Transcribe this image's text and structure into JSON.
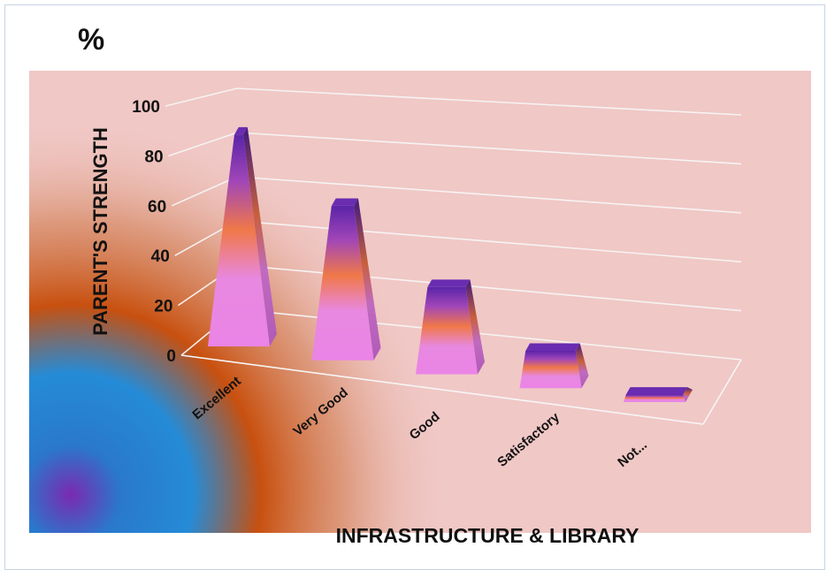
{
  "chart_data": {
    "type": "bar",
    "title": "%",
    "xlabel": "INFRASTRUCTURE & LIBRARY",
    "ylabel": "PARENT'S STRENGTH",
    "categories": [
      "Excellent",
      "Very Good",
      "Good",
      "Satisfactory",
      "Not..."
    ],
    "values": [
      85,
      62,
      35,
      15,
      3
    ],
    "ylim": [
      0,
      100
    ],
    "yticks": [
      "0",
      "20",
      "40",
      "60",
      "80",
      "100"
    ],
    "grid": true,
    "style": "3d-pyramid"
  },
  "colors": {
    "plot_background": "#f0c8c6",
    "glow_orange": "#c8500f",
    "glow_blue": "#1a7fd0",
    "glow_purple": "#7a2ab0",
    "bar_top": "#6a2cb0",
    "bar_mid": "#f07848",
    "bar_bottom": "#ea84e6",
    "gridline": "#f4f4f4"
  }
}
